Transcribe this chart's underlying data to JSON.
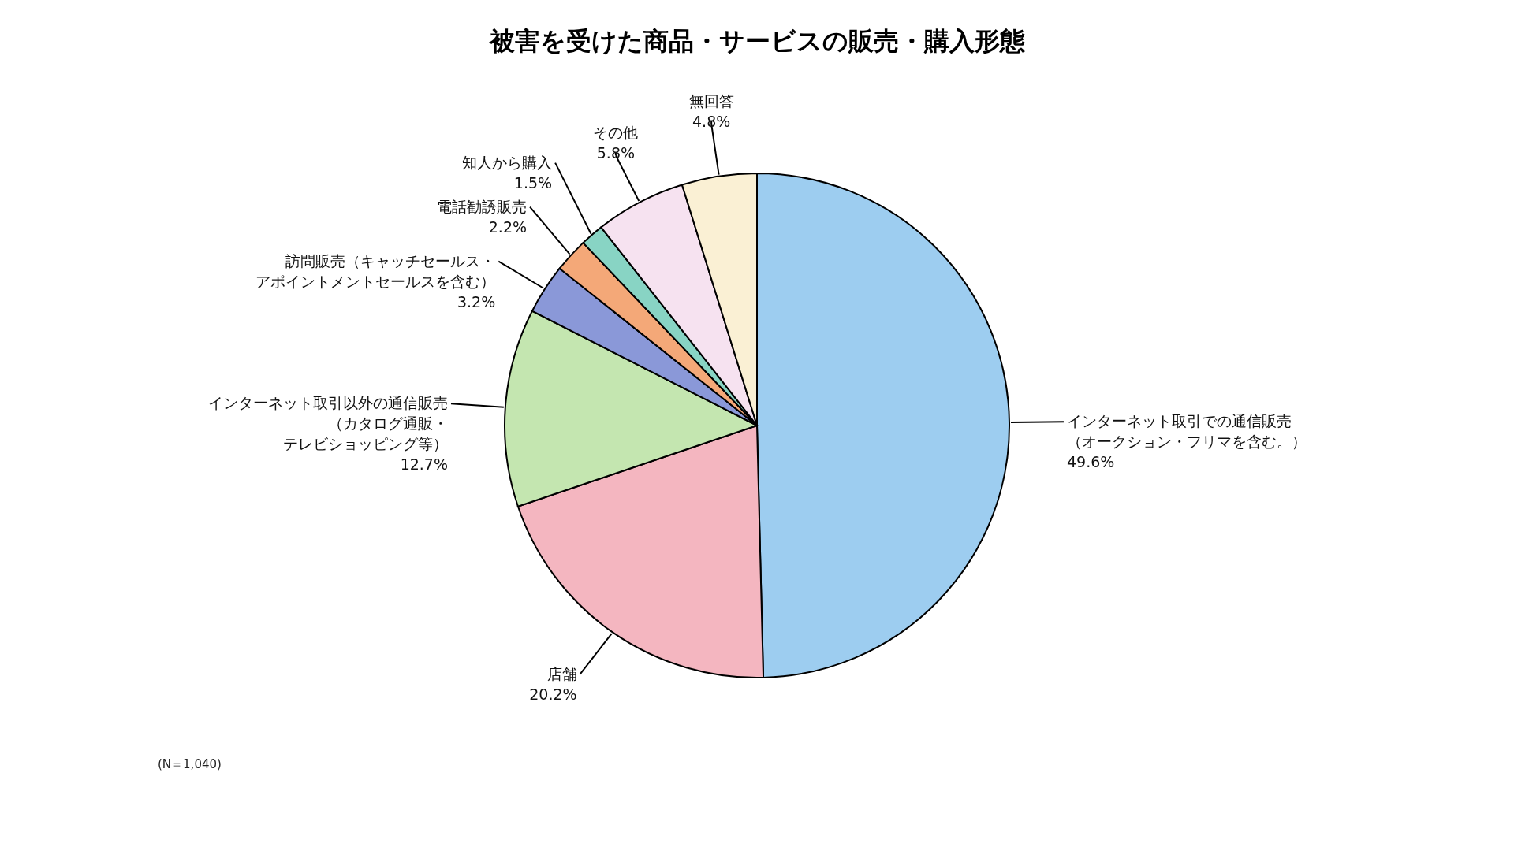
{
  "chart_data": {
    "type": "pie",
    "title": "被害を受けた商品・サービスの販売・購入形態",
    "categories": [
      "インターネット取引での通信販売（オークション・フリマを含む。）",
      "店舗",
      "インターネット取引以外の通信販売（カタログ通販・テレビショッピング等）",
      "訪問販売（キャッチセールス・アポイントメントセールスを含む）",
      "電話勧誘販売",
      "知人から購入",
      "その他",
      "無回答"
    ],
    "values": [
      49.6,
      20.2,
      12.7,
      3.2,
      2.2,
      1.5,
      5.8,
      4.8
    ],
    "value_labels": [
      "49.6%",
      "20.2%",
      "12.7%",
      "3.2%",
      "2.2%",
      "1.5%",
      "5.8%",
      "4.8%"
    ],
    "colors": [
      "#9dcdf0",
      "#f4b6c0",
      "#c4e6b0",
      "#8a98d8",
      "#f4a878",
      "#88d4c4",
      "#f6e2f0",
      "#faf0d4"
    ],
    "legend": false,
    "annotations": [
      "(N＝1,040)"
    ]
  }
}
